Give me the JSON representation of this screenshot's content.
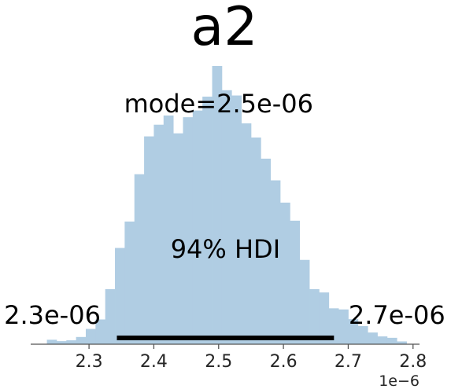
{
  "chart_data": {
    "type": "bar",
    "title": "a2",
    "xlabel": "",
    "ylabel": "",
    "x_offset_label": "1e−6",
    "xlim": [
      2.21,
      2.81
    ],
    "ylim": [
      0,
      1.0
    ],
    "grid": false,
    "legend": "none",
    "bar_color": "#b0cde3",
    "hdi_color": "#000000",
    "x_ticks": [
      2.3,
      2.4,
      2.5,
      2.6,
      2.7,
      2.8
    ],
    "x_tick_labels": [
      "2.3",
      "2.4",
      "2.5",
      "2.6",
      "2.7",
      "2.8"
    ],
    "bin_edges": [
      2.235,
      2.25,
      2.265,
      2.28,
      2.295,
      2.31,
      2.325,
      2.34,
      2.355,
      2.37,
      2.385,
      2.4,
      2.415,
      2.43,
      2.445,
      2.46,
      2.475,
      2.49,
      2.505,
      2.52,
      2.535,
      2.55,
      2.565,
      2.58,
      2.595,
      2.61,
      2.625,
      2.64,
      2.655,
      2.67,
      2.685,
      2.7,
      2.715,
      2.73,
      2.745,
      2.76,
      2.775,
      2.79
    ],
    "densities": [
      0.016,
      0.011,
      0.014,
      0.026,
      0.055,
      0.089,
      0.198,
      0.346,
      0.441,
      0.611,
      0.747,
      0.789,
      0.822,
      0.758,
      0.816,
      0.84,
      0.89,
      1.0,
      0.913,
      0.894,
      0.794,
      0.743,
      0.667,
      0.589,
      0.509,
      0.444,
      0.303,
      0.198,
      0.186,
      0.129,
      0.125,
      0.09,
      0.065,
      0.042,
      0.028,
      0.023,
      0.01
    ],
    "mode_label": "mode=2.5e-06",
    "hdi": {
      "label": "94% HDI",
      "low": 2.343,
      "high": 2.678,
      "low_label": "2.3e-06",
      "high_label": "2.7e-06"
    }
  }
}
